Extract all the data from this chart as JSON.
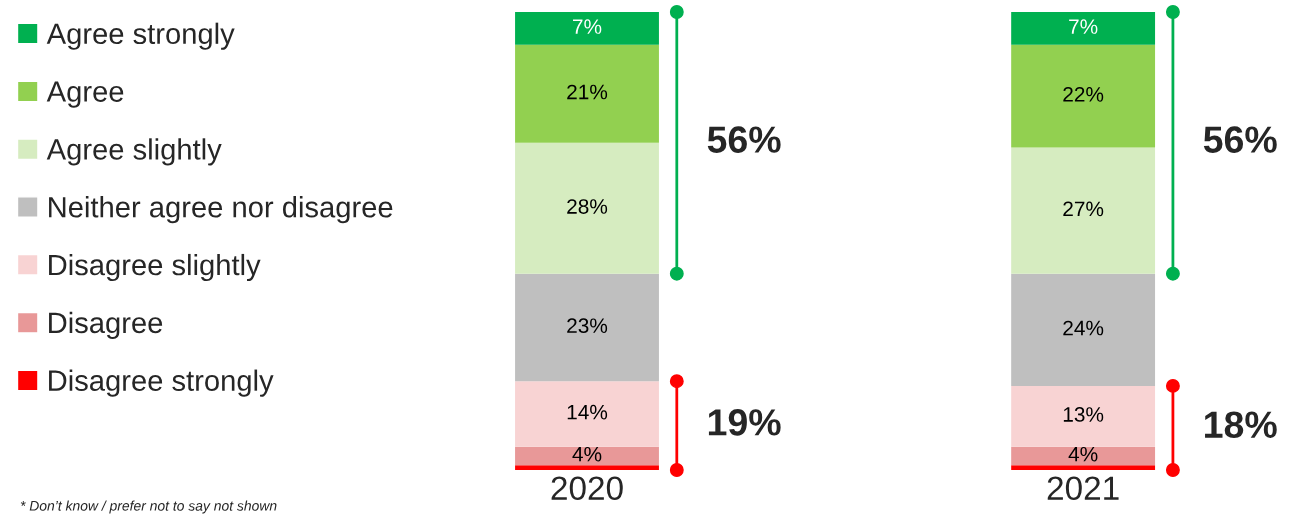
{
  "chart_data": {
    "type": "bar",
    "stacked": true,
    "categories": [
      "2020",
      "2021"
    ],
    "series": [
      {
        "name": "Disagree strongly",
        "color": "#ff0000",
        "values": [
          1,
          1
        ],
        "value_labels": [
          null,
          null
        ]
      },
      {
        "name": "Disagree",
        "color": "#e89898",
        "values": [
          4,
          4
        ],
        "value_labels": [
          "4%",
          "4%"
        ]
      },
      {
        "name": "Disagree slightly",
        "color": "#f8d3d3",
        "values": [
          14,
          13
        ],
        "value_labels": [
          "14%",
          "13%"
        ]
      },
      {
        "name": "Neither agree nor disagree",
        "color": "#bfbfbf",
        "values": [
          23,
          24
        ],
        "value_labels": [
          "23%",
          "24%"
        ]
      },
      {
        "name": "Agree slightly",
        "color": "#d6ecc0",
        "values": [
          28,
          27
        ],
        "value_labels": [
          "28%",
          "27%"
        ]
      },
      {
        "name": "Agree",
        "color": "#92d050",
        "values": [
          21,
          22
        ],
        "value_labels": [
          "21%",
          "22%"
        ]
      },
      {
        "name": "Agree strongly",
        "color": "#00b050",
        "values": [
          7,
          7
        ],
        "value_labels": [
          "7%",
          "7%"
        ]
      }
    ],
    "legend": "left",
    "annotations": [
      "56%",
      "19%",
      "56%",
      "18%",
      "* Don’t know / prefer not to say not shown"
    ]
  }
}
